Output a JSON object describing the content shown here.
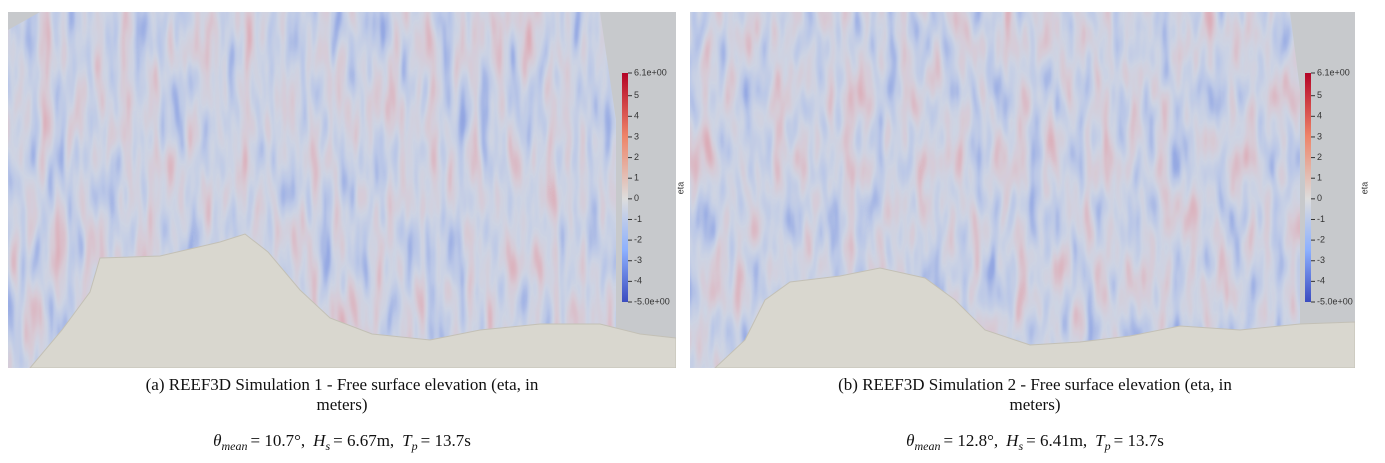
{
  "panels": [
    {
      "caption": "(a) REEF3D Simulation 1 - Free surface elevation (eta, in meters)",
      "params": [
        {
          "sym": "θ",
          "sub": "mean",
          "rest": "= 10.7°,"
        },
        {
          "sym": "H",
          "sub": "s",
          "rest": "= 6.67m,"
        },
        {
          "sym": "T",
          "sub": "p",
          "rest": "= 13.7s"
        }
      ],
      "colorbar": {
        "label": "eta",
        "lim": [
          -5,
          6.1
        ],
        "ticks": [
          {
            "value": 6.1,
            "label": "6.1e+00"
          },
          5,
          4,
          3,
          2,
          1,
          0,
          -1,
          -2,
          -3,
          -4,
          {
            "value": -5,
            "label": "-5.0e+00"
          }
        ]
      }
    },
    {
      "caption": "(b) REEF3D Simulation 2 - Free surface elevation (eta, in meters)",
      "params": [
        {
          "sym": "θ",
          "sub": "mean",
          "rest": "= 12.8°,"
        },
        {
          "sym": "H",
          "sub": "s",
          "rest": "= 6.41m,"
        },
        {
          "sym": "T",
          "sub": "p",
          "rest": "= 13.7s"
        }
      ],
      "colorbar": {
        "label": "eta",
        "lim": [
          -5,
          6.1
        ],
        "ticks": [
          {
            "value": 6.1,
            "label": "6.1e+00"
          },
          5,
          4,
          3,
          2,
          1,
          0,
          -1,
          -2,
          -3,
          -4,
          {
            "value": -5,
            "label": "-5.0e+00"
          }
        ]
      }
    }
  ]
}
